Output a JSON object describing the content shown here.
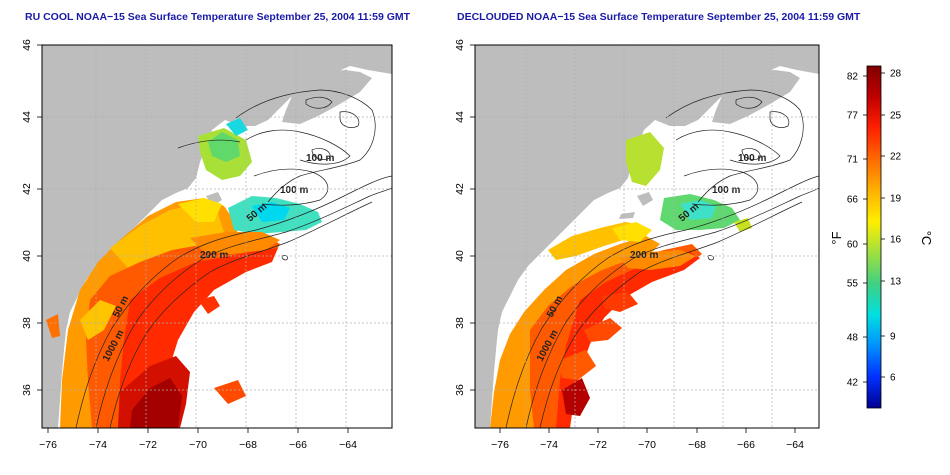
{
  "panels": [
    {
      "title": "RU COOL NOAA−15 Sea Surface Temperature September 25, 2004 11:59 GMT",
      "contour_labels": [
        "100 m",
        "100 m",
        "50 m",
        "200 m",
        "50 m",
        "1000 m"
      ]
    },
    {
      "title": "DECLOUDED NOAA−15 Sea Surface Temperature September 25, 2004 11:59 GMT",
      "contour_labels": [
        "100 m",
        "100 m",
        "50 m",
        "200 m",
        "50 m",
        "1000 m"
      ]
    }
  ],
  "axes": {
    "x_ticks": [
      "−76",
      "−74",
      "−72",
      "−70",
      "−68",
      "−66",
      "−64"
    ],
    "y_ticks": [
      "36",
      "38",
      "40",
      "42",
      "44",
      "46"
    ]
  },
  "colorbar": {
    "f_label": "°F",
    "c_label": "°C",
    "f_ticks": [
      "82",
      "77",
      "71",
      "66",
      "60",
      "55",
      "48",
      "42"
    ],
    "c_ticks": [
      "28",
      "25",
      "22",
      "19",
      "16",
      "13",
      "9",
      "6"
    ],
    "colors": [
      "#800000",
      "#c00000",
      "#ff2000",
      "#ff6a00",
      "#ffb000",
      "#ffee00",
      "#a0e040",
      "#40d080",
      "#00e0e0",
      "#0090ff",
      "#0030ff",
      "#000090"
    ]
  }
}
